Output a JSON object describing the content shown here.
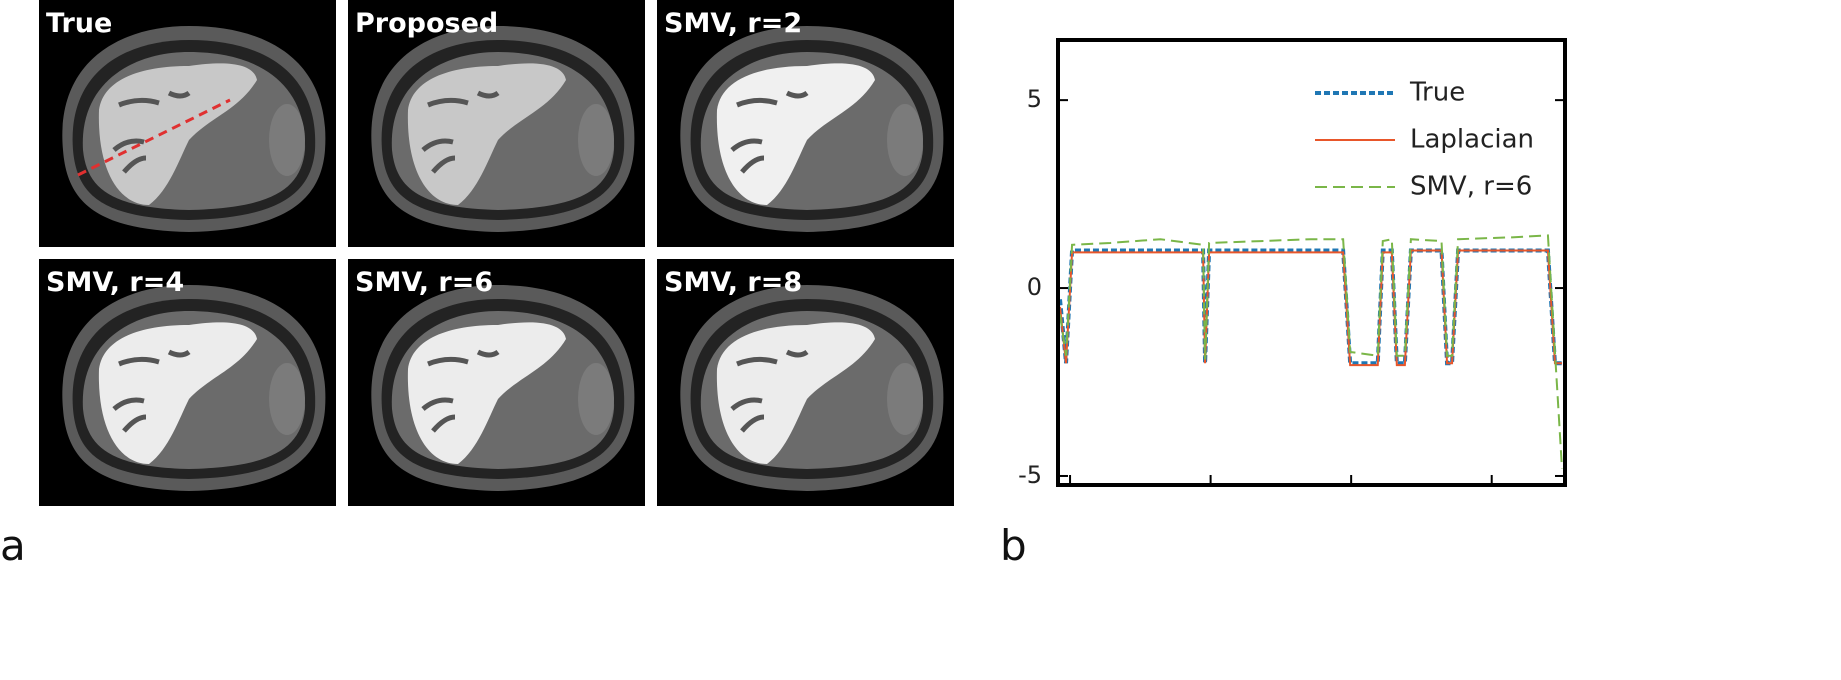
{
  "panels": [
    "True",
    "Proposed",
    "SMV, r=2",
    "SMV, r=4",
    "SMV, r=6",
    "SMV, r=8"
  ],
  "panel_letters": [
    "a",
    "b"
  ],
  "chart_data": {
    "type": "line",
    "x": [
      0,
      1.2,
      2.4,
      10,
      20,
      28.5,
      28.9,
      29.7,
      40,
      50,
      56.4,
      57.8,
      63.3,
      64.3,
      66.1,
      67.1,
      68.7,
      69.9,
      76,
      77.1,
      78.1,
      79.3,
      90,
      97.2,
      98.6,
      100
    ],
    "series": [
      {
        "name": "True",
        "color": "#1f77b4",
        "style": "dotted",
        "values": [
          -0.3,
          -2,
          1,
          1,
          1,
          1,
          -2,
          1,
          1,
          1,
          1,
          -2,
          -2,
          1,
          1,
          -2,
          -2,
          1,
          1,
          -2,
          -2,
          1,
          1,
          1,
          -2,
          -2
        ]
      },
      {
        "name": "Laplacian",
        "color": "#e8562a",
        "style": "solid",
        "values": [
          -0.5,
          -2,
          0.95,
          0.95,
          0.95,
          0.95,
          -2,
          0.95,
          0.95,
          0.95,
          0.95,
          -2.05,
          -2.05,
          0.95,
          0.95,
          -2.05,
          -2.05,
          1,
          1,
          -2,
          -2,
          1,
          1,
          1,
          -2,
          -2
        ]
      },
      {
        "name": "SMV, r=6",
        "color": "#7ab648",
        "style": "dashed",
        "values": [
          -0.7,
          -1.8,
          1.15,
          1.2,
          1.3,
          1.15,
          -1.9,
          1.2,
          1.25,
          1.3,
          1.3,
          -1.7,
          -1.8,
          1.25,
          1.3,
          -1.8,
          -1.8,
          1.3,
          1.25,
          -1.8,
          -1.8,
          1.3,
          1.35,
          1.4,
          -1.7,
          -4.8
        ]
      }
    ],
    "xlim": [
      -0.4,
      100.6
    ],
    "xticks": [
      2,
      30,
      58,
      86
    ],
    "ylim": [
      -5.24,
      6.6
    ],
    "yticks": [
      5,
      0,
      -5
    ],
    "legend": "upper right"
  }
}
